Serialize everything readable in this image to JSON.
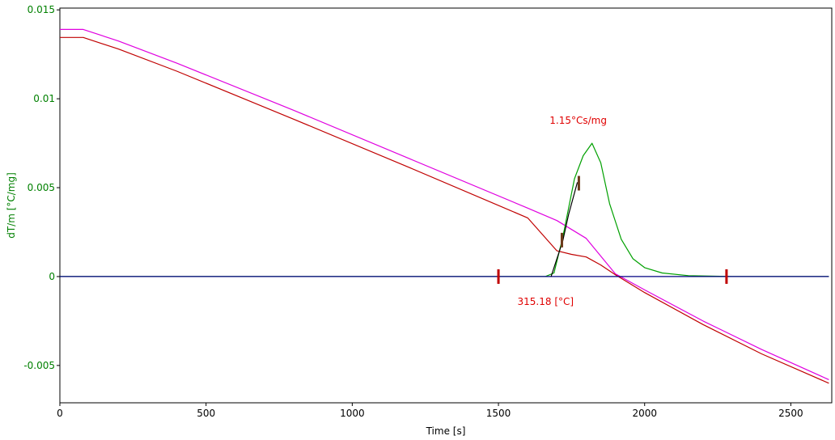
{
  "chart_data": {
    "type": "line",
    "xlabel": "Time [s]",
    "ylabel": "dT/m  [°C/mg]",
    "xlim": [
      0,
      2640
    ],
    "ylim": [
      -0.0071,
      0.0151
    ],
    "xticks": [
      0,
      500,
      1000,
      1500,
      2000,
      2500
    ],
    "xtick_labels": [
      "0",
      "500",
      "1000",
      "1500",
      "2000",
      "2500"
    ],
    "yticks": [
      0.015,
      0.01,
      0.005,
      0,
      -0.005
    ],
    "ytick_labels": [
      "0.015",
      "0.01",
      "0.005",
      "0",
      "-0.005"
    ],
    "grid": false,
    "legend": "none",
    "series": [
      {
        "color": "#e000e0",
        "x": [
          0,
          80,
          200,
          400,
          800,
          1200,
          1600,
          1700,
          1800,
          1900,
          2000,
          2200,
          2400,
          2630
        ],
        "y": [
          0.0139,
          0.0139,
          0.01325,
          0.012,
          0.00935,
          0.0066,
          0.00385,
          0.00315,
          0.00215,
          0.00015,
          -0.00075,
          -0.0025,
          -0.0041,
          -0.0058
        ]
      },
      {
        "color": "#c00000",
        "x": [
          0,
          80,
          200,
          400,
          800,
          1200,
          1600,
          1700,
          1750,
          1800,
          1850,
          1900,
          2000,
          2200,
          2400,
          2630
        ],
        "y": [
          0.01345,
          0.01345,
          0.0128,
          0.01155,
          0.00885,
          0.0061,
          0.0033,
          0.00145,
          0.00125,
          0.0011,
          0.00065,
          0.0001,
          -0.0009,
          -0.0027,
          -0.00435,
          -0.006
        ]
      },
      {
        "color": "#00a000",
        "x": [
          0,
          1500,
          1660,
          1690,
          1720,
          1760,
          1790,
          1820,
          1850,
          1880,
          1920,
          1960,
          2000,
          2060,
          2150,
          2300,
          2630
        ],
        "y": [
          0,
          0,
          0,
          0.0002,
          0.0022,
          0.0055,
          0.0068,
          0.0075,
          0.0064,
          0.0041,
          0.0021,
          0.001,
          0.0005,
          0.0002,
          5e-05,
          0,
          0
        ]
      },
      {
        "color": "#000080",
        "x": [
          0,
          2630
        ],
        "y": [
          0,
          0
        ]
      },
      {
        "color": "#000000",
        "x": [
          1680,
          1700,
          1720,
          1740,
          1770
        ],
        "y": [
          0,
          0.001,
          0.002,
          0.0035,
          0.0053
        ]
      }
    ],
    "markers": [
      {
        "x": 1500,
        "y": 0,
        "color": "#c00000"
      },
      {
        "x": 1717,
        "y": 0.00205,
        "color": "#6b3a1a"
      },
      {
        "x": 1775,
        "y": 0.00525,
        "color": "#6b3a1a"
      },
      {
        "x": 2280,
        "y": 0,
        "color": "#c00000"
      }
    ],
    "annotations": [
      {
        "text": "1.15°Cs/mg",
        "x": 1675,
        "y": 0.0086
      },
      {
        "text": "315.18 [°C]",
        "x": 1565,
        "y": -0.0016
      }
    ]
  }
}
